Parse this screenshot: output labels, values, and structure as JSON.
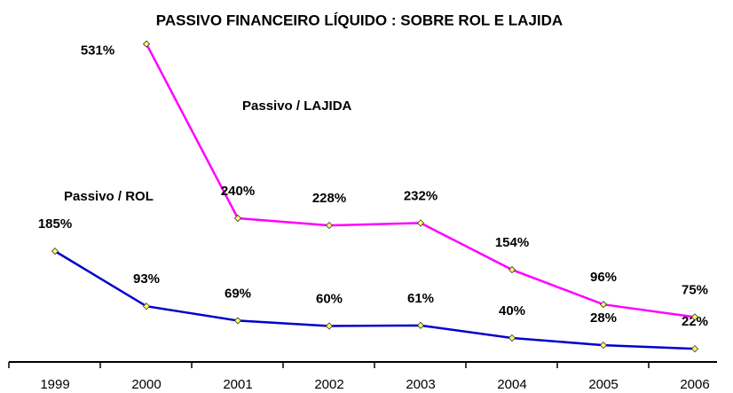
{
  "chart_data": {
    "type": "line",
    "title": "PASSIVO FINANCEIRO LÍQUIDO : SOBRE ROL E LAJIDA",
    "categories": [
      "1999",
      "2000",
      "2001",
      "2002",
      "2003",
      "2004",
      "2005",
      "2006"
    ],
    "series": [
      {
        "name": "Passivo / ROL",
        "color": "#0000cc",
        "values": [
          185,
          93,
          69,
          60,
          61,
          40,
          28,
          22
        ],
        "value_labels": [
          "185%",
          "93%",
          "69%",
          "60%",
          "61%",
          "40%",
          "28%",
          "22%"
        ]
      },
      {
        "name": "Passivo / LAJIDA",
        "color": "#ff00ff",
        "values": [
          null,
          531,
          240,
          228,
          232,
          154,
          96,
          75
        ],
        "value_labels": [
          null,
          "531%",
          "240%",
          "228%",
          "232%",
          "154%",
          "96%",
          "75%"
        ]
      }
    ],
    "ylim": [
      0,
      560
    ]
  }
}
